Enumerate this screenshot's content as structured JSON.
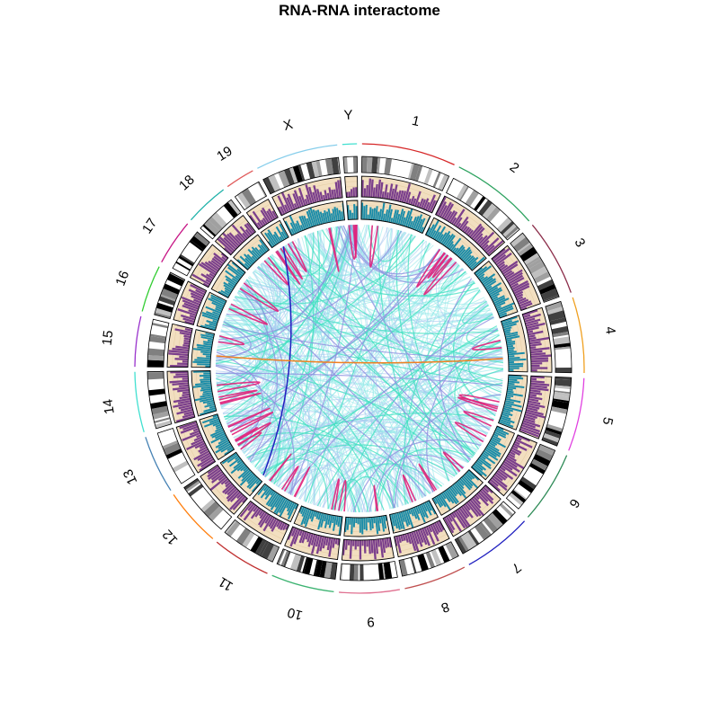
{
  "chart_data": {
    "type": "circos",
    "title": "RNA-RNA interactome",
    "chromosomes": [
      {
        "name": "1",
        "size": 195,
        "color": "#d62728"
      },
      {
        "name": "2",
        "size": 182,
        "color": "#2ca25f"
      },
      {
        "name": "3",
        "size": 160,
        "color": "#8c2d4a"
      },
      {
        "name": "4",
        "size": 157,
        "color": "#f0a020"
      },
      {
        "name": "5",
        "size": 152,
        "color": "#e040e0"
      },
      {
        "name": "6",
        "size": 150,
        "color": "#2e8b57"
      },
      {
        "name": "7",
        "size": 145,
        "color": "#2020c0"
      },
      {
        "name": "8",
        "size": 130,
        "color": "#c05050"
      },
      {
        "name": "9",
        "size": 125,
        "color": "#e07090"
      },
      {
        "name": "10",
        "size": 131,
        "color": "#3cb371"
      },
      {
        "name": "11",
        "size": 122,
        "color": "#c03030"
      },
      {
        "name": "12",
        "size": 121,
        "color": "#ff7f0e"
      },
      {
        "name": "13",
        "size": 121,
        "color": "#4682b4"
      },
      {
        "name": "14",
        "size": 125,
        "color": "#40e0d0"
      },
      {
        "name": "15",
        "size": 104,
        "color": "#9932cc"
      },
      {
        "name": "16",
        "size": 98,
        "color": "#32cd32"
      },
      {
        "name": "17",
        "size": 95,
        "color": "#c71585"
      },
      {
        "name": "18",
        "size": 91,
        "color": "#20b2aa"
      },
      {
        "name": "19",
        "size": 61,
        "color": "#e05a5a"
      },
      {
        "name": "X",
        "size": 171,
        "color": "#87ceeb"
      },
      {
        "name": "Y",
        "size": 30,
        "color": "#40e0d0"
      }
    ],
    "tracks": [
      {
        "name": "ideogram",
        "description": "cytoband ideogram"
      },
      {
        "name": "track-purple",
        "color": "#7b3f8c",
        "background": "#f2dfc0"
      },
      {
        "name": "track-teal",
        "color": "#1a8ca8",
        "background": "#f2dfc0"
      }
    ],
    "link_colors": [
      "#8ee8e8",
      "#a8c8f0",
      "#40e0c0",
      "#e0207a",
      "#9090e0",
      "#2020c0",
      "#f08020"
    ]
  }
}
